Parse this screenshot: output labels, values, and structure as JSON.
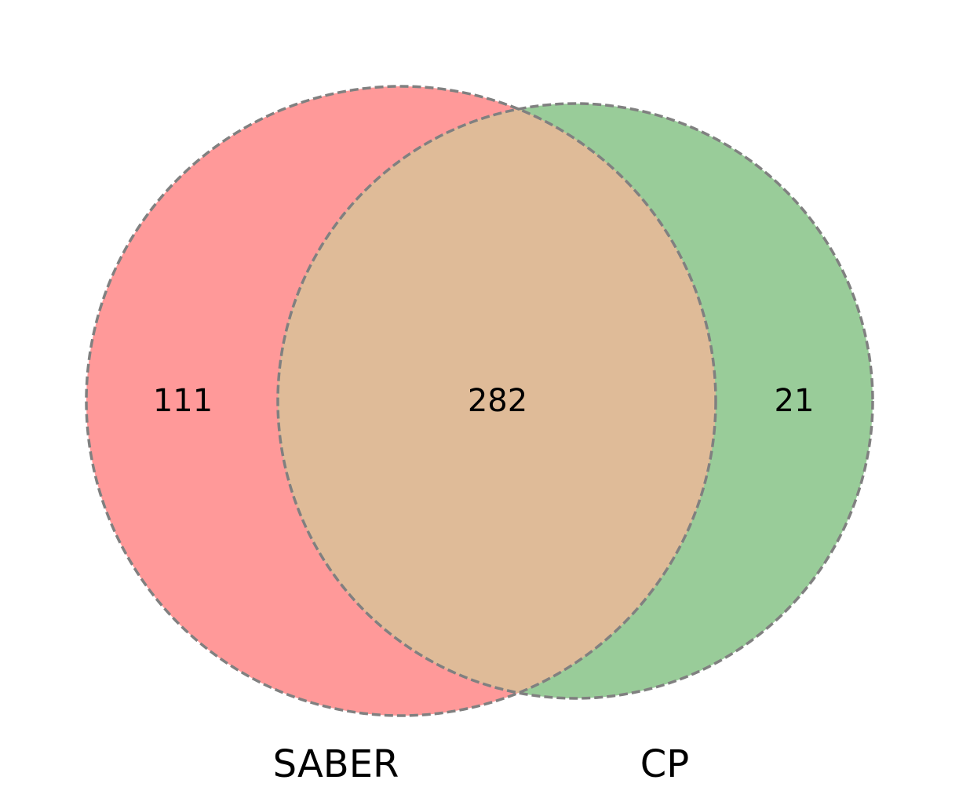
{
  "diagram": {
    "type": "venn2",
    "sets": [
      {
        "name": "SABER",
        "only_count": "111",
        "color": "#ff9999"
      },
      {
        "name": "CP",
        "only_count": "21",
        "color": "#99cc99"
      }
    ],
    "intersection": {
      "count": "282",
      "color": "#dfbb98"
    },
    "outline_color": "#808080"
  }
}
